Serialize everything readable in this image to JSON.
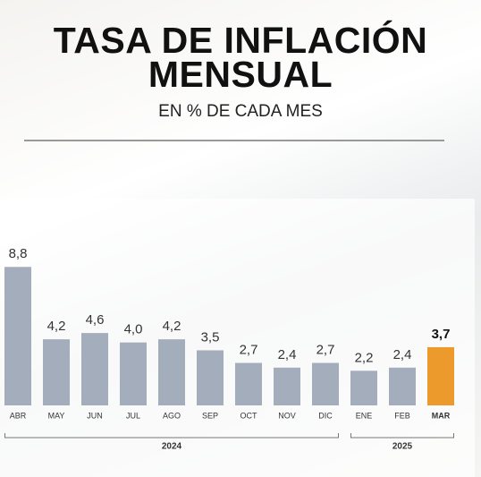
{
  "chart_data": {
    "type": "bar",
    "title": "TASA DE INFLACIÓN MENSUAL",
    "subtitle": "EN % DE CADA MES",
    "categories": [
      "ABR",
      "MAY",
      "JUN",
      "JUL",
      "AGO",
      "SEP",
      "OCT",
      "NOV",
      "DIC",
      "ENE",
      "FEB",
      "MAR"
    ],
    "values": [
      8.8,
      4.2,
      4.6,
      4.0,
      4.2,
      3.5,
      2.7,
      2.4,
      2.7,
      2.2,
      2.4,
      3.7
    ],
    "value_labels": [
      "8,8",
      "4,2",
      "4,6",
      "4,0",
      "4,2",
      "3,5",
      "2,7",
      "2,4",
      "2,7",
      "2,2",
      "2,4",
      "3,7"
    ],
    "colors": [
      "#a3adbb",
      "#a3adbb",
      "#a3adbb",
      "#a3adbb",
      "#a3adbb",
      "#a3adbb",
      "#a3adbb",
      "#a3adbb",
      "#a3adbb",
      "#a3adbb",
      "#a3adbb",
      "#eb9a2b"
    ],
    "ylim": [
      0,
      12
    ],
    "year_groups": [
      {
        "label": "2024",
        "count": 9
      },
      {
        "label": "2025",
        "count": 3
      }
    ]
  }
}
